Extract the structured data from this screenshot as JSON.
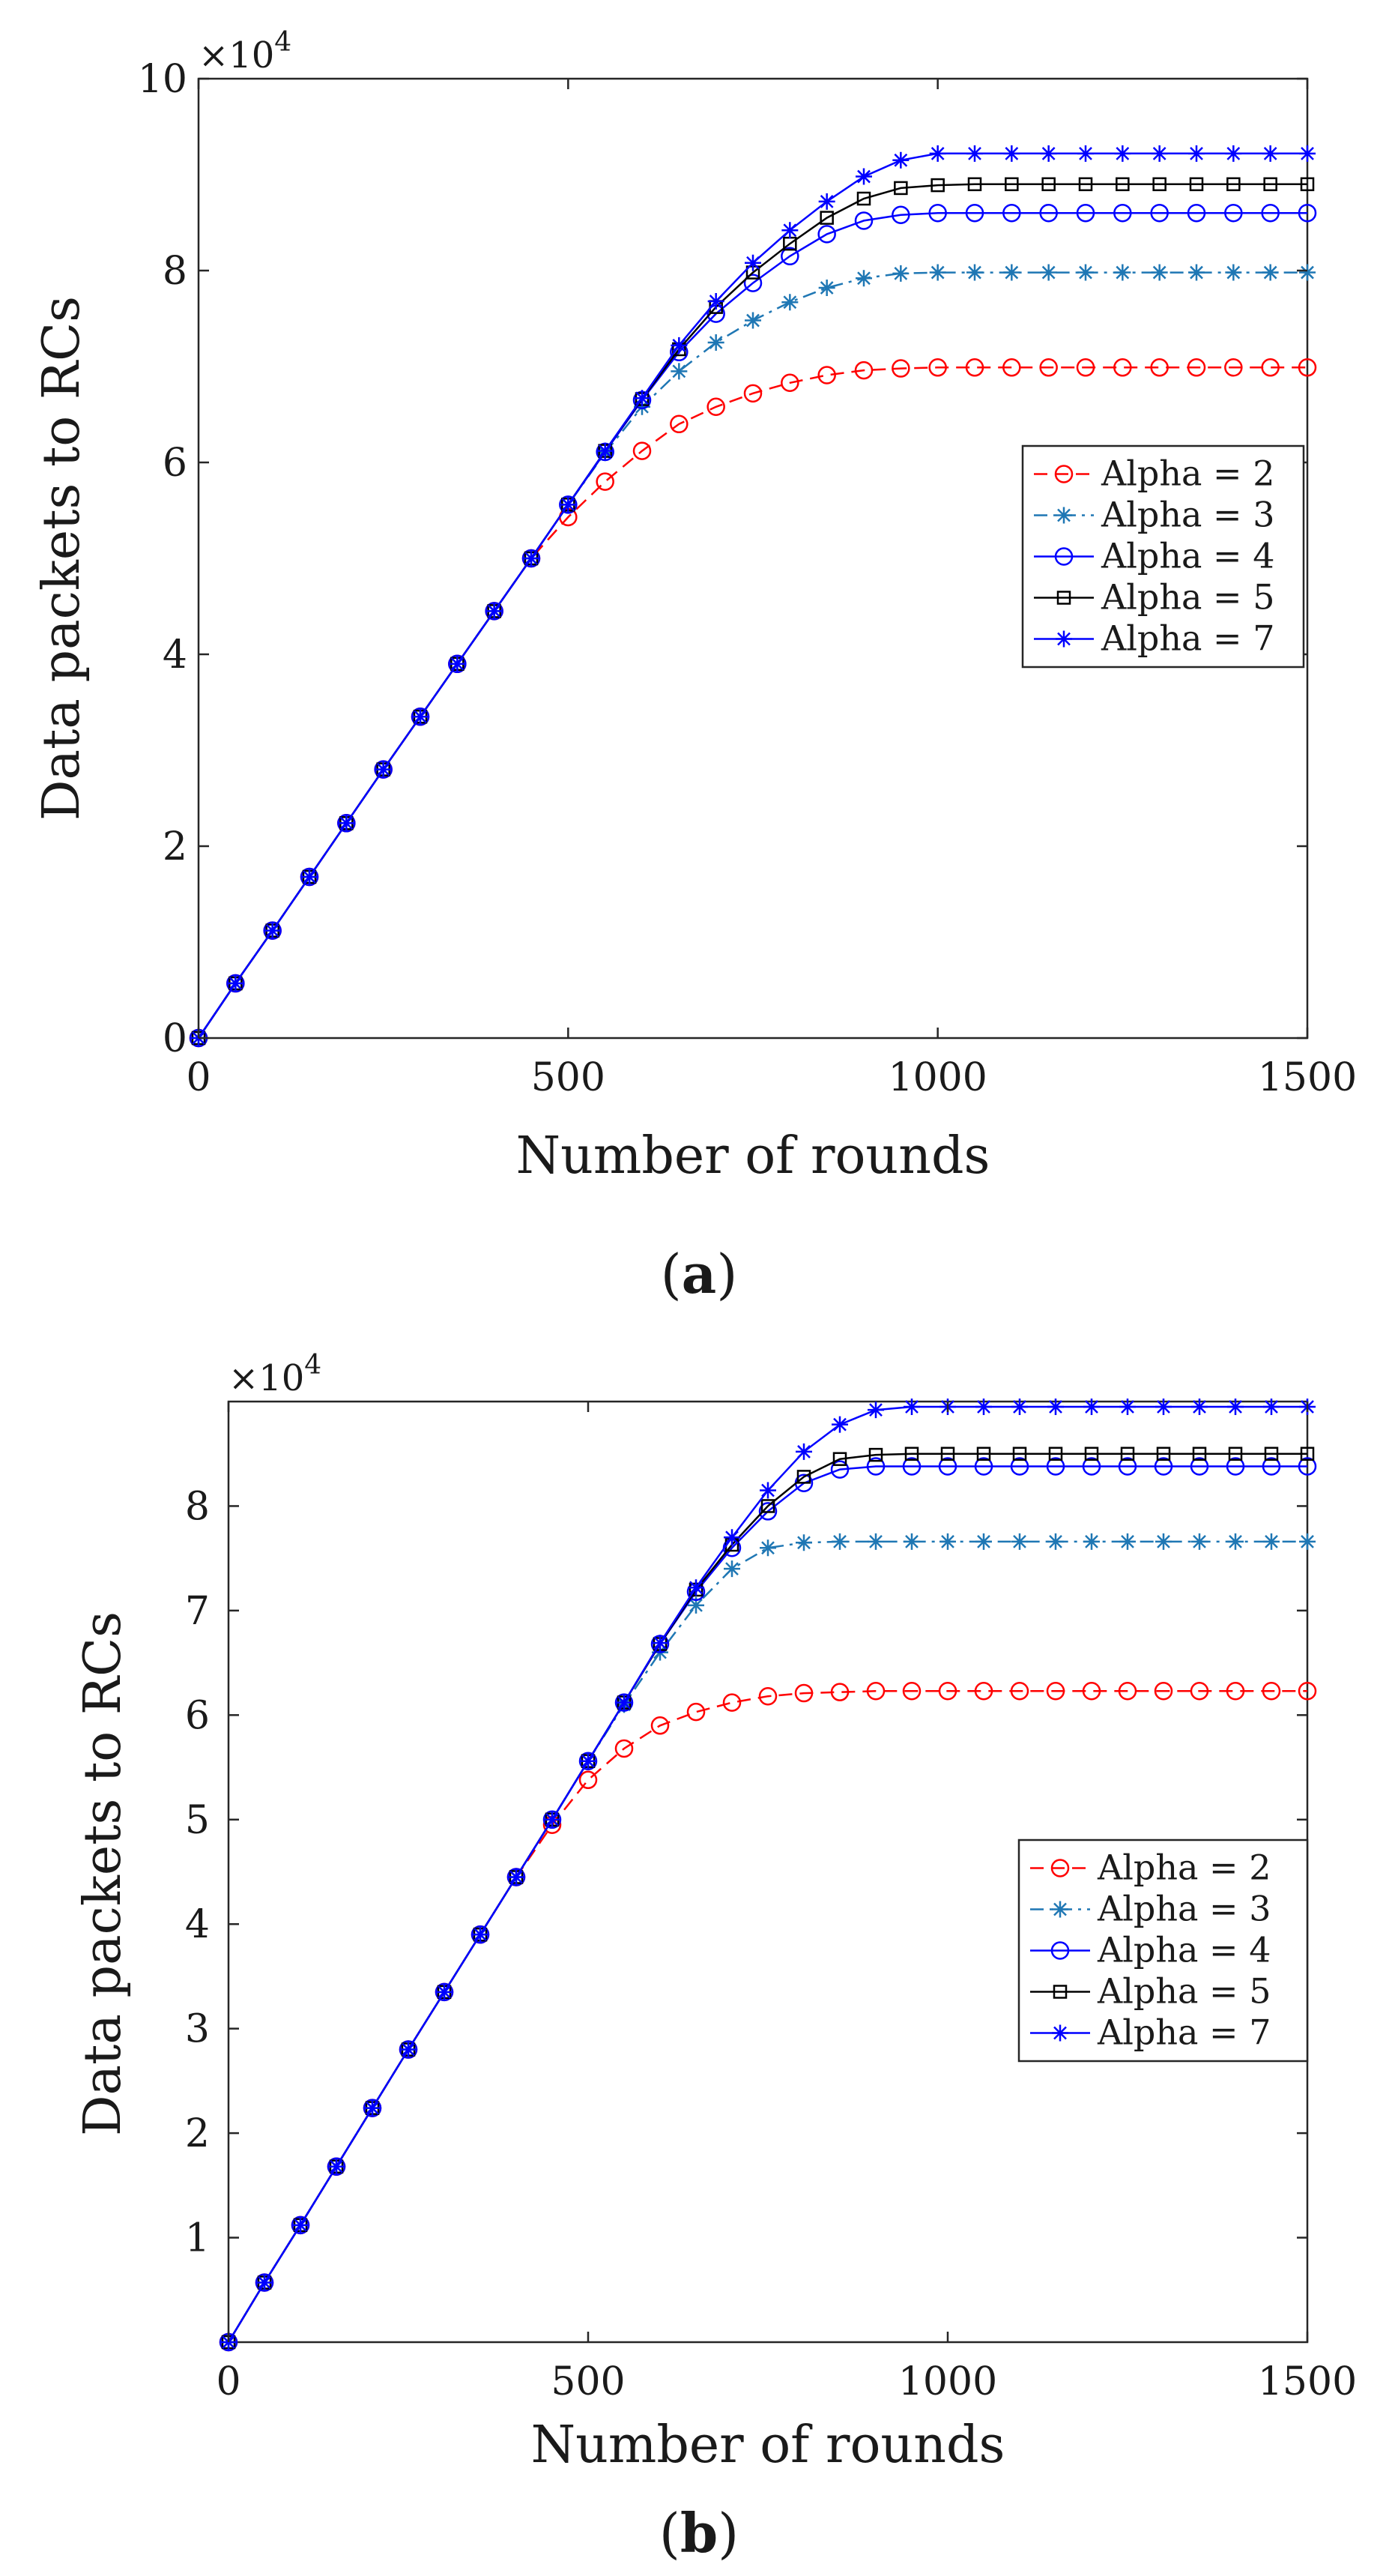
{
  "chart_data": [
    {
      "panel_label": "a",
      "type": "line",
      "title": "",
      "exponent_label": "×10",
      "exponent_power": "4",
      "xlabel": "Number of rounds",
      "ylabel": "Data packets to RCs",
      "xlim": [
        0,
        1500
      ],
      "ylim": [
        0,
        10
      ],
      "xticks": [
        0,
        500,
        1000,
        1500
      ],
      "yticks": [
        0,
        2,
        4,
        6,
        8,
        10
      ],
      "x": [
        0,
        50,
        100,
        150,
        200,
        250,
        300,
        350,
        400,
        450,
        500,
        550,
        600,
        650,
        700,
        750,
        800,
        850,
        900,
        950,
        1000,
        1050,
        1100,
        1150,
        1200,
        1250,
        1300,
        1350,
        1400,
        1450,
        1500
      ],
      "legend_position": "middle-right",
      "series": [
        {
          "name": "Alpha = 2",
          "color": "#ff0000",
          "dash": "dashed",
          "marker": "circle",
          "values": [
            0,
            0.57,
            1.12,
            1.68,
            2.24,
            2.8,
            3.35,
            3.9,
            4.45,
            5.0,
            5.43,
            5.8,
            6.12,
            6.4,
            6.58,
            6.72,
            6.83,
            6.91,
            6.96,
            6.98,
            6.99,
            6.99,
            6.99,
            6.99,
            6.99,
            6.99,
            6.99,
            6.99,
            6.99,
            6.99,
            6.99
          ]
        },
        {
          "name": "Alpha = 3",
          "color": "#1f77b4",
          "dash": "dashdot",
          "marker": "star",
          "values": [
            0,
            0.57,
            1.12,
            1.68,
            2.24,
            2.8,
            3.35,
            3.9,
            4.45,
            5.0,
            5.56,
            6.1,
            6.58,
            6.95,
            7.25,
            7.48,
            7.67,
            7.82,
            7.92,
            7.97,
            7.98,
            7.98,
            7.98,
            7.98,
            7.98,
            7.98,
            7.98,
            7.98,
            7.98,
            7.98,
            7.98
          ]
        },
        {
          "name": "Alpha = 4",
          "color": "#0000ff",
          "dash": "solid",
          "marker": "circle",
          "values": [
            0,
            0.57,
            1.12,
            1.68,
            2.24,
            2.8,
            3.35,
            3.9,
            4.45,
            5.0,
            5.56,
            6.11,
            6.65,
            7.15,
            7.55,
            7.87,
            8.15,
            8.38,
            8.52,
            8.58,
            8.6,
            8.6,
            8.6,
            8.6,
            8.6,
            8.6,
            8.6,
            8.6,
            8.6,
            8.6,
            8.6
          ]
        },
        {
          "name": "Alpha = 5",
          "color": "#000000",
          "dash": "solid",
          "marker": "square",
          "values": [
            0,
            0.57,
            1.12,
            1.68,
            2.24,
            2.8,
            3.35,
            3.9,
            4.45,
            5.0,
            5.56,
            6.12,
            6.66,
            7.18,
            7.62,
            7.98,
            8.28,
            8.55,
            8.75,
            8.86,
            8.89,
            8.9,
            8.9,
            8.9,
            8.9,
            8.9,
            8.9,
            8.9,
            8.9,
            8.9,
            8.9
          ]
        },
        {
          "name": "Alpha = 7",
          "color": "#0000ff",
          "dash": "solid",
          "marker": "star",
          "values": [
            0,
            0.57,
            1.12,
            1.68,
            2.24,
            2.8,
            3.35,
            3.9,
            4.45,
            5.0,
            5.56,
            6.12,
            6.67,
            7.22,
            7.68,
            8.08,
            8.42,
            8.72,
            8.98,
            9.15,
            9.22,
            9.22,
            9.22,
            9.22,
            9.22,
            9.22,
            9.22,
            9.22,
            9.22,
            9.22,
            9.22
          ]
        }
      ]
    },
    {
      "panel_label": "b",
      "type": "line",
      "title": "",
      "exponent_label": "×10",
      "exponent_power": "4",
      "xlabel": "Number of rounds",
      "ylabel": "Data packets to RCs",
      "xlim": [
        0,
        1500
      ],
      "ylim": [
        0,
        9
      ],
      "xticks": [
        0,
        500,
        1000,
        1500
      ],
      "yticks": [
        1,
        2,
        3,
        4,
        5,
        6,
        7,
        8
      ],
      "x": [
        0,
        50,
        100,
        150,
        200,
        250,
        300,
        350,
        400,
        450,
        500,
        550,
        600,
        650,
        700,
        750,
        800,
        850,
        900,
        950,
        1000,
        1050,
        1100,
        1150,
        1200,
        1250,
        1300,
        1350,
        1400,
        1450,
        1500
      ],
      "legend_position": "middle-right",
      "series": [
        {
          "name": "Alpha = 2",
          "color": "#ff0000",
          "dash": "dashed",
          "marker": "circle",
          "values": [
            0,
            0.57,
            1.12,
            1.68,
            2.24,
            2.8,
            3.35,
            3.9,
            4.45,
            4.95,
            5.38,
            5.68,
            5.9,
            6.03,
            6.12,
            6.18,
            6.21,
            6.22,
            6.23,
            6.23,
            6.23,
            6.23,
            6.23,
            6.23,
            6.23,
            6.23,
            6.23,
            6.23,
            6.23,
            6.23,
            6.23
          ]
        },
        {
          "name": "Alpha = 3",
          "color": "#1f77b4",
          "dash": "dashdot",
          "marker": "star",
          "values": [
            0,
            0.57,
            1.12,
            1.68,
            2.24,
            2.8,
            3.35,
            3.9,
            4.45,
            5.0,
            5.56,
            6.1,
            6.6,
            7.05,
            7.4,
            7.6,
            7.65,
            7.66,
            7.66,
            7.66,
            7.66,
            7.66,
            7.66,
            7.66,
            7.66,
            7.66,
            7.66,
            7.66,
            7.66,
            7.66,
            7.66
          ]
        },
        {
          "name": "Alpha = 4",
          "color": "#0000ff",
          "dash": "solid",
          "marker": "circle",
          "values": [
            0,
            0.57,
            1.12,
            1.68,
            2.24,
            2.8,
            3.35,
            3.9,
            4.45,
            5.0,
            5.56,
            6.12,
            6.68,
            7.18,
            7.6,
            7.95,
            8.22,
            8.35,
            8.38,
            8.38,
            8.38,
            8.38,
            8.38,
            8.38,
            8.38,
            8.38,
            8.38,
            8.38,
            8.38,
            8.38,
            8.38
          ]
        },
        {
          "name": "Alpha = 5",
          "color": "#000000",
          "dash": "solid",
          "marker": "square",
          "values": [
            0,
            0.57,
            1.12,
            1.68,
            2.24,
            2.8,
            3.35,
            3.9,
            4.45,
            5.0,
            5.56,
            6.12,
            6.68,
            7.2,
            7.63,
            8.0,
            8.28,
            8.45,
            8.49,
            8.5,
            8.5,
            8.5,
            8.5,
            8.5,
            8.5,
            8.5,
            8.5,
            8.5,
            8.5,
            8.5,
            8.5
          ]
        },
        {
          "name": "Alpha = 7",
          "color": "#0000ff",
          "dash": "solid",
          "marker": "star",
          "values": [
            0,
            0.57,
            1.12,
            1.68,
            2.24,
            2.8,
            3.35,
            3.9,
            4.45,
            5.0,
            5.56,
            6.12,
            6.69,
            7.22,
            7.7,
            8.15,
            8.52,
            8.78,
            8.92,
            8.95,
            8.95,
            8.95,
            8.95,
            8.95,
            8.95,
            8.95,
            8.95,
            8.95,
            8.95,
            8.95,
            8.95
          ]
        }
      ]
    }
  ]
}
